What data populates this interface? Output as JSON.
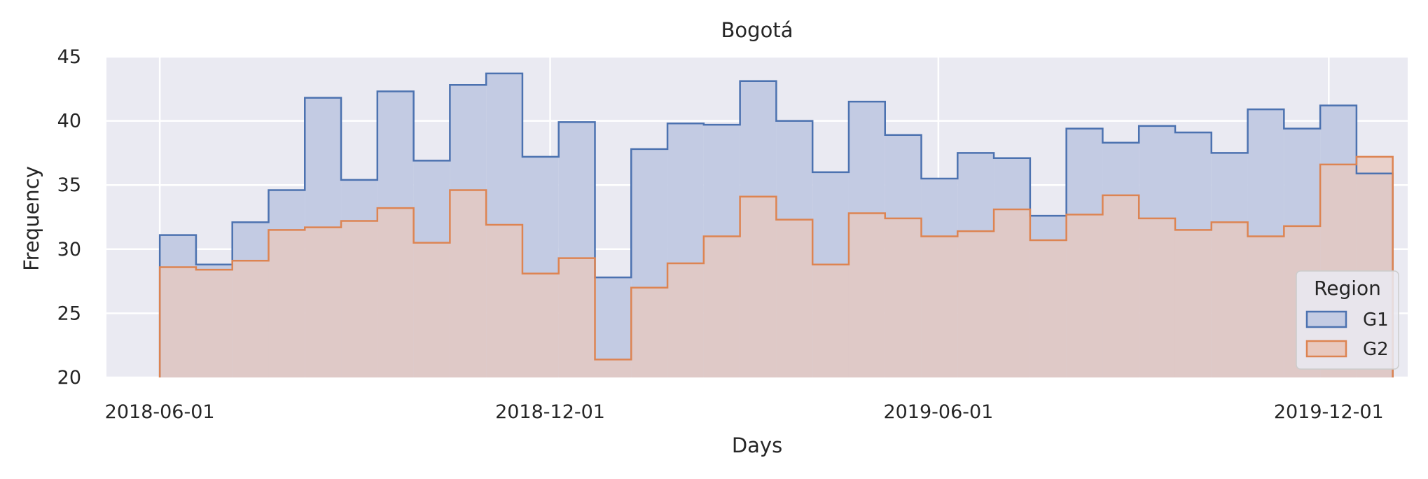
{
  "chart_data": {
    "type": "histogram",
    "title": "Bogotá",
    "xlabel": "Days",
    "ylabel": "Frequency",
    "ylim": [
      20,
      45
    ],
    "yticks": [
      20,
      25,
      30,
      35,
      40,
      45
    ],
    "xlim": [
      "2018-05-07",
      "2020-01-07"
    ],
    "xticks": [
      "2018-06-01",
      "2018-12-01",
      "2019-06-01",
      "2019-12-01"
    ],
    "bin_width_days": 17,
    "bin_starts": [
      "2018-06-01",
      "2018-06-18",
      "2018-07-05",
      "2018-07-22",
      "2018-08-08",
      "2018-08-25",
      "2018-09-11",
      "2018-09-28",
      "2018-10-15",
      "2018-11-01",
      "2018-11-18",
      "2018-12-05",
      "2018-12-22",
      "2019-01-08",
      "2019-01-25",
      "2019-02-11",
      "2019-02-28",
      "2019-03-17",
      "2019-04-03",
      "2019-04-20",
      "2019-05-07",
      "2019-05-24",
      "2019-06-10",
      "2019-06-27",
      "2019-07-14",
      "2019-07-31",
      "2019-08-17",
      "2019-09-03",
      "2019-09-20",
      "2019-10-07",
      "2019-10-24",
      "2019-11-10",
      "2019-11-27",
      "2019-12-14"
    ],
    "grid": true,
    "legend": {
      "title": "Region",
      "placement": "lower-right"
    },
    "series": [
      {
        "name": "G1",
        "color": "#4c72b0",
        "fill": "#c3cbe3",
        "values": [
          31.1,
          28.8,
          32.1,
          34.6,
          41.8,
          35.4,
          42.3,
          36.9,
          42.8,
          43.7,
          37.2,
          39.9,
          27.8,
          37.8,
          39.8,
          39.7,
          43.1,
          40.0,
          36.0,
          41.5,
          38.9,
          35.5,
          37.5,
          37.1,
          32.6,
          39.4,
          38.3,
          39.6,
          39.1,
          37.5,
          40.9,
          39.4,
          41.2,
          35.9
        ]
      },
      {
        "name": "G2",
        "color": "#dd8452",
        "fill": "#e8c8be",
        "values": [
          28.6,
          28.4,
          29.1,
          31.5,
          31.7,
          32.2,
          33.2,
          30.5,
          34.6,
          31.9,
          28.1,
          29.3,
          21.4,
          27.0,
          28.9,
          31.0,
          34.1,
          32.3,
          28.8,
          32.8,
          32.4,
          31.0,
          31.4,
          33.1,
          30.7,
          32.7,
          34.2,
          32.4,
          31.5,
          32.1,
          31.0,
          31.8,
          36.6,
          37.2
        ]
      }
    ]
  }
}
